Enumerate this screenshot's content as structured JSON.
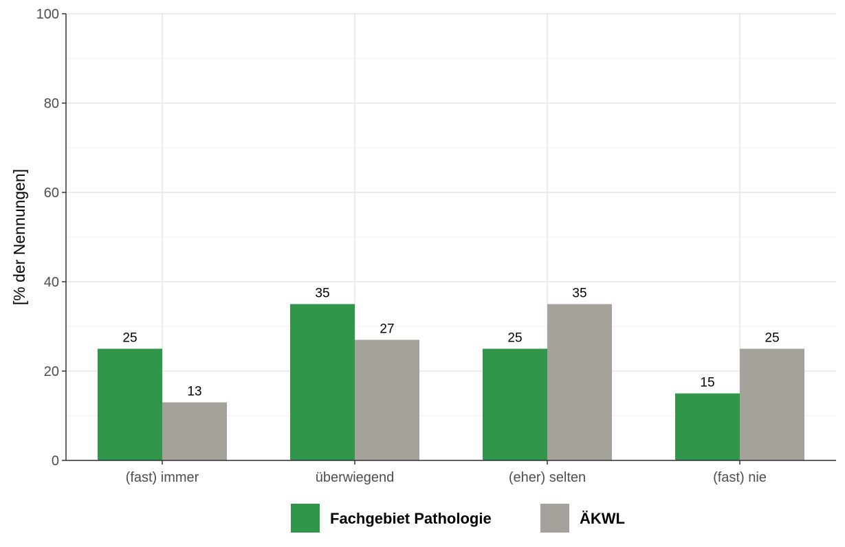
{
  "chart_data": {
    "type": "bar",
    "title": "",
    "xlabel": "",
    "ylabel": "[% der Nennungen]",
    "categories": [
      "(fast) immer",
      "überwiegend",
      "(eher) selten",
      "(fast) nie"
    ],
    "series": [
      {
        "name": "Fachgebiet Pathologie",
        "color": "#31954a",
        "values": [
          25,
          35,
          25,
          15
        ]
      },
      {
        "name": "ÄKWL",
        "color": "#a5a29b",
        "values": [
          13,
          27,
          35,
          25
        ]
      }
    ],
    "data_labels": [
      [
        "25",
        "35",
        "25",
        "15"
      ],
      [
        "13",
        "27",
        "35",
        "25"
      ]
    ],
    "ylim": [
      0,
      100
    ],
    "yticks": [
      0,
      20,
      40,
      60,
      80,
      100
    ],
    "grid": true,
    "legend_position": "bottom"
  }
}
